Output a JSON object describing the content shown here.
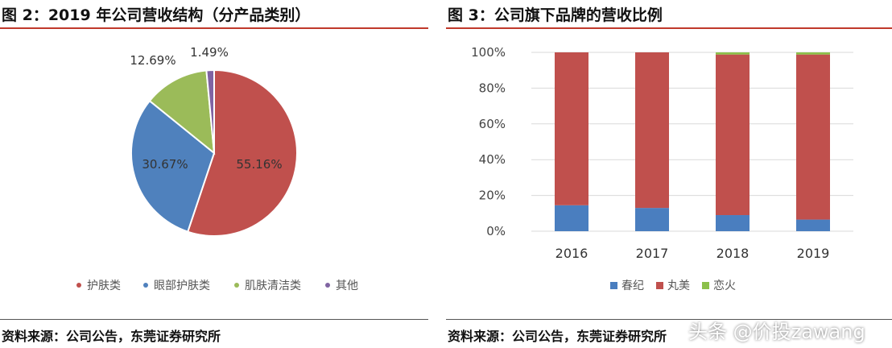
{
  "left": {
    "title": "图 2：2019 年公司营收结构（分产品类别）",
    "source": "资料来源：公司公告，东莞证券研究所"
  },
  "right": {
    "title": "图 3：公司旗下品牌的营收比例",
    "source": "资料来源：公司公告，东莞证券研究所"
  },
  "watermark": "头条 @价投zawang",
  "chart_data": [
    {
      "type": "pie",
      "title": "2019 年公司营收结构（分产品类别）",
      "labels": [
        "护肤类",
        "眼部护肤类",
        "肌肤清洁类",
        "其他"
      ],
      "values": [
        55.16,
        30.67,
        12.69,
        1.49
      ],
      "value_labels": [
        "55.16%",
        "30.67%",
        "12.69%",
        "1.49%"
      ],
      "colors": [
        "#c0504d",
        "#4f81bd",
        "#9bbb59",
        "#8064a2"
      ],
      "legend": "bottom"
    },
    {
      "type": "bar",
      "stacked": true,
      "title": "公司旗下品牌的营收比例",
      "categories": [
        "2016",
        "2017",
        "2018",
        "2019"
      ],
      "series": [
        {
          "name": "春纪",
          "values": [
            14.5,
            13,
            9,
            6.5
          ],
          "color": "#4a7ebf"
        },
        {
          "name": "丸美",
          "values": [
            85.5,
            87,
            89.8,
            92.3
          ],
          "color": "#c0504d"
        },
        {
          "name": "恋火",
          "values": [
            0,
            0,
            1.2,
            1.2
          ],
          "color": "#8cc04a"
        }
      ],
      "ylim": [
        0,
        100
      ],
      "yticks": [
        "0%",
        "20%",
        "40%",
        "60%",
        "80%",
        "100%"
      ],
      "grid": true,
      "legend": "bottom"
    }
  ]
}
